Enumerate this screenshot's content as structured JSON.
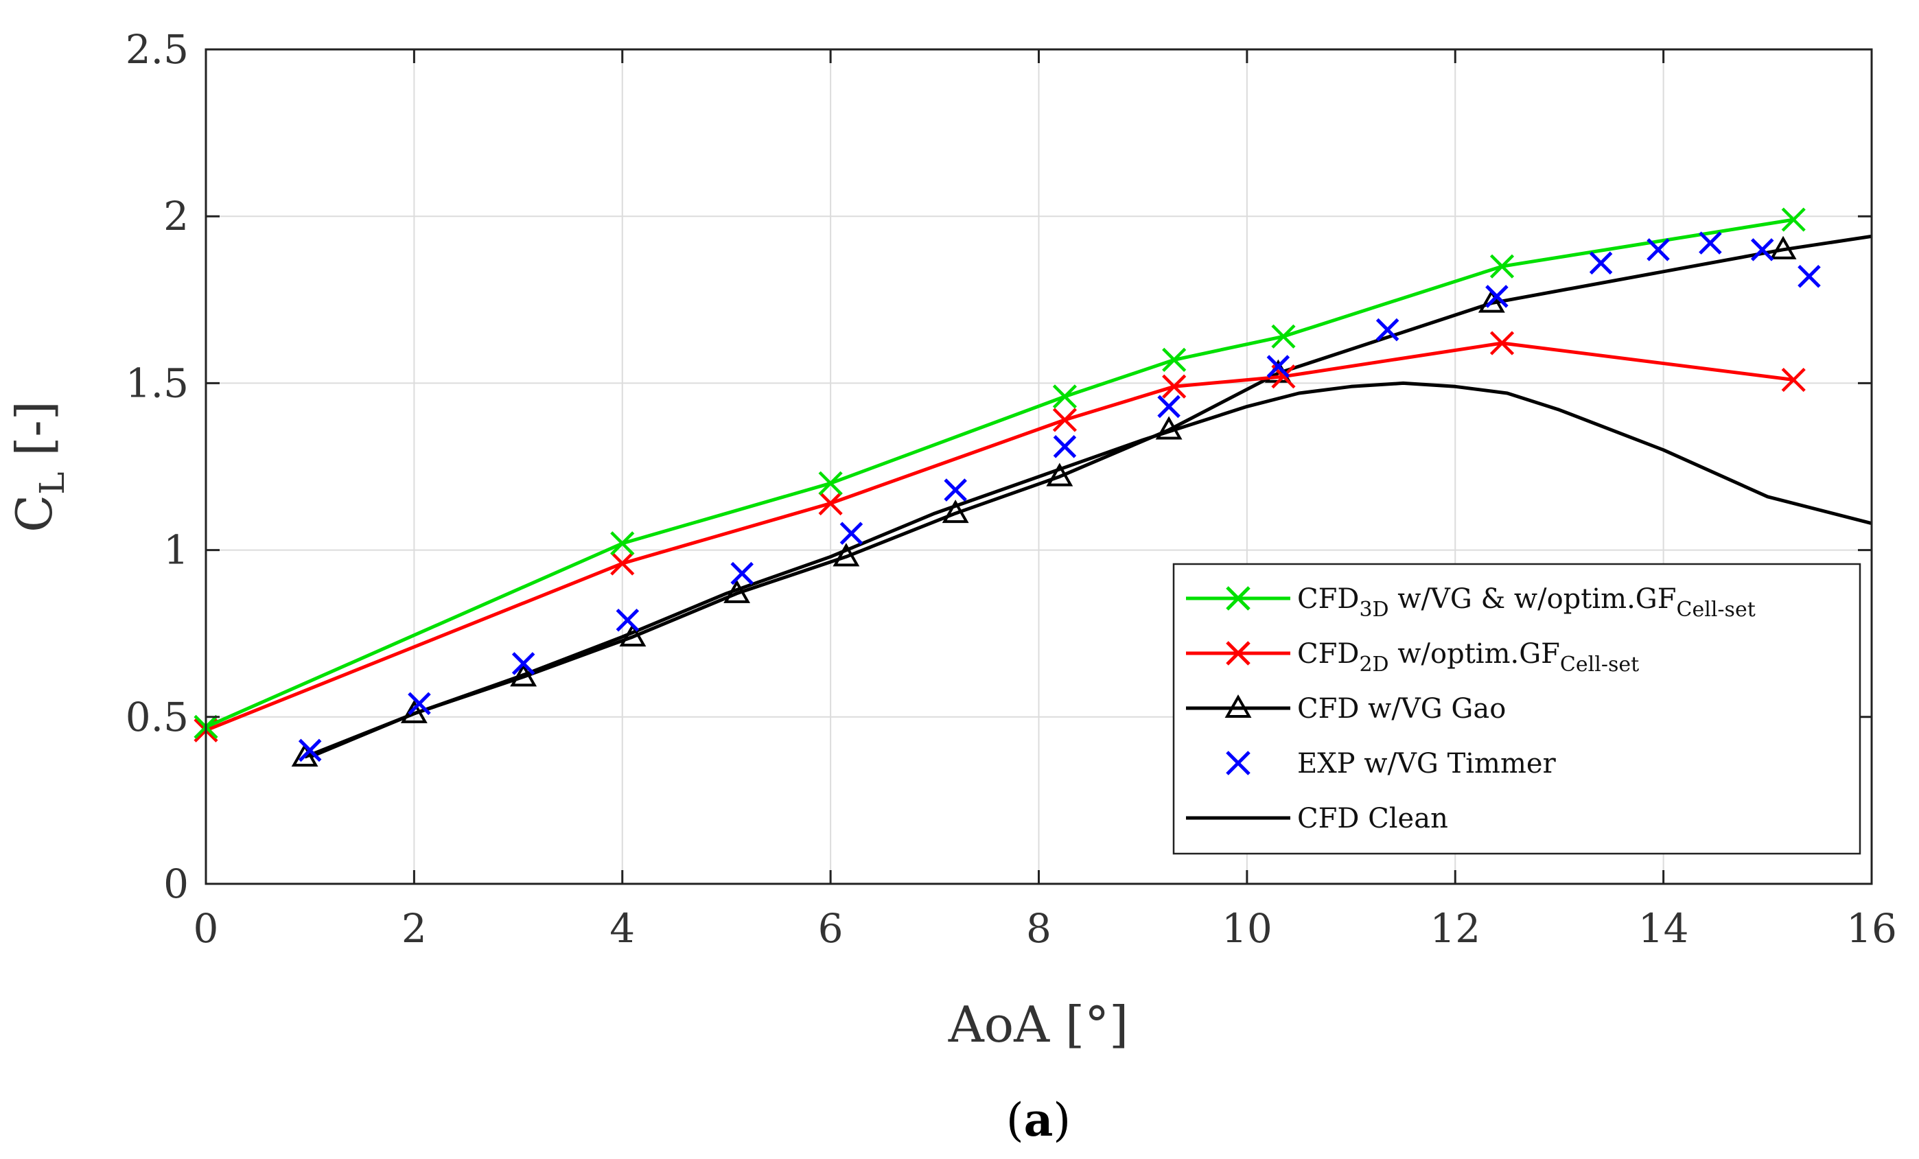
{
  "chart_data": {
    "type": "line",
    "xlabel": "AoA [°]",
    "ylabel_main": "C",
    "ylabel_sub": "L",
    "ylabel_suffix": " [-]",
    "xlim": [
      0,
      16
    ],
    "ylim": [
      0,
      2.5
    ],
    "xticks": [
      0,
      2,
      4,
      6,
      8,
      10,
      12,
      14,
      16
    ],
    "yticks": [
      0,
      0.5,
      1,
      1.5,
      2,
      2.5
    ],
    "xtick_labels": [
      "0",
      "2",
      "4",
      "6",
      "8",
      "10",
      "12",
      "14",
      "16"
    ],
    "ytick_labels": [
      "0",
      "0.5",
      "1",
      "1.5",
      "2",
      "2.5"
    ],
    "grid": true,
    "legend_position": "bottom-right",
    "panel_label": {
      "open": "(",
      "letter": "a",
      "close": ")"
    },
    "series": [
      {
        "id": "cfd3d",
        "legend": {
          "main": "CFD",
          "sub1": "3D",
          "mid": " w/VG & w/optim.GF",
          "sub2": "Cell-set"
        },
        "color": "#00e000",
        "line": true,
        "marker": "x",
        "x": [
          0,
          4,
          6,
          8.25,
          9.3,
          10.35,
          12.45,
          15.25
        ],
        "y": [
          0.47,
          1.02,
          1.2,
          1.46,
          1.57,
          1.64,
          1.85,
          1.99
        ]
      },
      {
        "id": "cfd2d",
        "legend": {
          "main": "CFD",
          "sub1": "2D",
          "mid": " w/optim.GF",
          "sub2": "Cell-set"
        },
        "color": "#ff0000",
        "line": true,
        "marker": "x",
        "x": [
          0,
          4,
          6,
          8.25,
          9.3,
          10.35,
          12.45,
          15.25
        ],
        "y": [
          0.46,
          0.96,
          1.14,
          1.39,
          1.49,
          1.52,
          1.62,
          1.51
        ]
      },
      {
        "id": "cfdgao",
        "legend": {
          "main": "CFD w/VG Gao"
        },
        "color": "#000000",
        "line": true,
        "marker": "triangle",
        "x": [
          0.95,
          2,
          3.05,
          4.1,
          5.1,
          6.15,
          7.2,
          8.2,
          9.25,
          10.3,
          12.35,
          15.15,
          16
        ],
        "y": [
          0.38,
          0.51,
          0.62,
          0.74,
          0.87,
          0.98,
          1.11,
          1.22,
          1.36,
          1.53,
          1.74,
          1.9,
          1.94
        ]
      },
      {
        "id": "exp",
        "legend": {
          "main": "EXP w/VG Timmer"
        },
        "color": "#0000ff",
        "line": false,
        "marker": "x",
        "x": [
          1,
          2.05,
          3.05,
          4.05,
          5.15,
          6.2,
          7.2,
          8.25,
          9.25,
          10.3,
          11.35,
          12.4,
          13.4,
          13.95,
          14.45,
          14.95,
          15.4
        ],
        "y": [
          0.4,
          0.54,
          0.66,
          0.79,
          0.93,
          1.05,
          1.18,
          1.31,
          1.43,
          1.55,
          1.66,
          1.76,
          1.86,
          1.9,
          1.92,
          1.9,
          1.82
        ]
      },
      {
        "id": "clean",
        "legend": {
          "main": "CFD Clean"
        },
        "color": "#000000",
        "line": true,
        "marker": "none",
        "x": [
          1,
          2,
          3,
          4,
          5,
          6,
          7,
          8,
          9,
          10,
          10.5,
          11,
          11.5,
          12,
          12.5,
          13,
          14,
          15,
          16
        ],
        "y": [
          0.38,
          0.51,
          0.62,
          0.74,
          0.87,
          0.98,
          1.11,
          1.22,
          1.33,
          1.43,
          1.47,
          1.49,
          1.5,
          1.49,
          1.47,
          1.42,
          1.3,
          1.16,
          1.08
        ]
      }
    ]
  }
}
